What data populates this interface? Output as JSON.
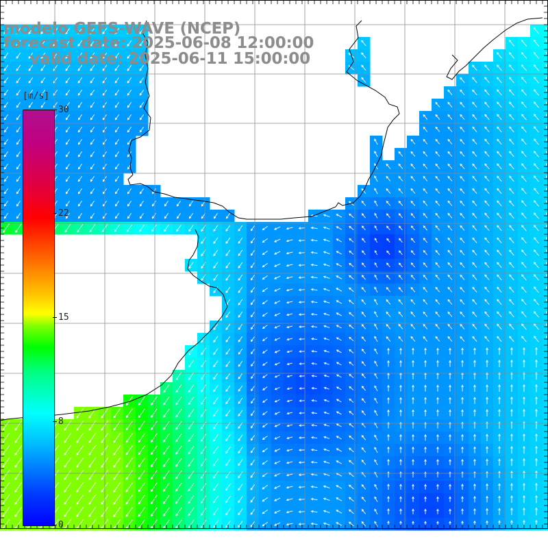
{
  "header": {
    "title": "modelo GEFS-WAVE (NCEP)",
    "forecast": "forecast date: 2025-06-08 12:00:00",
    "valid": "valid date: 2025-06-11 15:00:00"
  },
  "colorbar": {
    "units": "[m/s]",
    "ticks": [
      "30",
      "22",
      "15",
      "8",
      "0"
    ],
    "tick_values": [
      30,
      22,
      15,
      8,
      0
    ],
    "colors": [
      "#0000ff",
      "#0080ff",
      "#00ffff",
      "#00ff00",
      "#ffff00",
      "#ff8000",
      "#ff0000",
      "#c00080"
    ]
  },
  "map": {
    "quantity": "wind speed",
    "land_color": "#ffffff",
    "grid_color": "#999999",
    "coastline_color": "#000000",
    "arrow_color": "#ffffff"
  }
}
